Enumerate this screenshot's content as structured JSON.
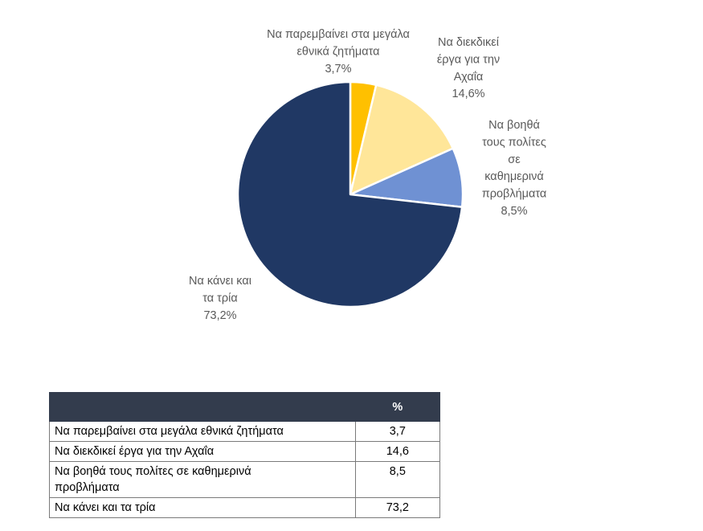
{
  "chart_data": {
    "type": "pie",
    "categories": [
      "Να παρεμβαίνει στα μεγάλα εθνικά ζητήματα",
      "Να διεκδικεί έργα για την Αχαΐα",
      "Να βοηθά τους πολίτες σε καθημερινά προβλήματα",
      "Να κάνει και τα τρία"
    ],
    "values": [
      3.7,
      14.6,
      8.5,
      73.2
    ],
    "colors": [
      "#ffc000",
      "#ffe699",
      "#6f91d3",
      "#203864"
    ],
    "data_labels": [
      [
        "Να παρεμβαίνει στα μεγάλα",
        "εθνικά ζητήματα",
        "3,7%"
      ],
      [
        "Να διεκδικεί",
        "έργα για την",
        "Αχαΐα",
        "14,6%"
      ],
      [
        "Να βοηθά",
        "τους πολίτες",
        "σε",
        "καθημερινά",
        "προβλήματα",
        "8,5%"
      ],
      [
        "Να κάνει και",
        "τα τρία",
        "73,2%"
      ]
    ]
  },
  "table": {
    "header": [
      "",
      "%"
    ],
    "rows": [
      [
        "Να παρεμβαίνει στα μεγάλα εθνικά ζητήματα",
        "3,7"
      ],
      [
        "Να διεκδικεί έργα για την Αχαΐα",
        "14,6"
      ],
      [
        "Να βοηθά τους πολίτες σε καθημερινά προβλήματα",
        "8,5"
      ],
      [
        "Να κάνει και τα τρία",
        "73,2"
      ]
    ]
  }
}
